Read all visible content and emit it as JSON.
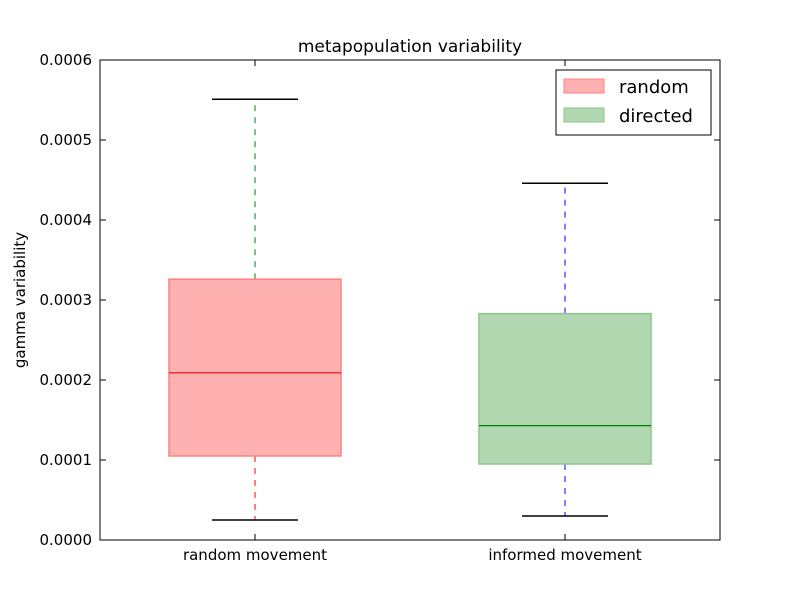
{
  "chart_data": {
    "type": "box",
    "title": "metapopulation variability",
    "xlabel": "",
    "ylabel": "gamma variability",
    "ylim": [
      0,
      0.0006
    ],
    "yticks": [
      "0.0000",
      "0.0001",
      "0.0002",
      "0.0003",
      "0.0004",
      "0.0005",
      "0.0006"
    ],
    "ytick_values": [
      0,
      0.0001,
      0.0002,
      0.0003,
      0.0004,
      0.0005,
      0.0006
    ],
    "categories": [
      "random movement",
      "informed movement"
    ],
    "boxes": [
      {
        "category": "random movement",
        "whisker_low": 2.5e-05,
        "q1": 0.000105,
        "median": 0.000209,
        "q3": 0.000326,
        "whisker_high": 0.000551,
        "fill": "#ffb0b0",
        "edge": "#ff8080",
        "median_color": "#ff0000",
        "lower_whisker_color": "#ff0000",
        "upper_whisker_color": "#008000"
      },
      {
        "category": "informed movement",
        "whisker_low": 3e-05,
        "q1": 9.5e-05,
        "median": 0.000143,
        "q3": 0.000283,
        "whisker_high": 0.000446,
        "fill": "#b2d8b2",
        "edge": "#8cc58c",
        "median_color": "#008000",
        "lower_whisker_color": "#0000ff",
        "upper_whisker_color": "#0000ff"
      }
    ],
    "legend": {
      "placement": "top-right",
      "entries": [
        {
          "label": "random",
          "color": "#ffb0b0",
          "edge": "#ff8080"
        },
        {
          "label": "directed",
          "color": "#b2d8b2",
          "edge": "#8cc58c"
        }
      ]
    },
    "grid": false
  }
}
